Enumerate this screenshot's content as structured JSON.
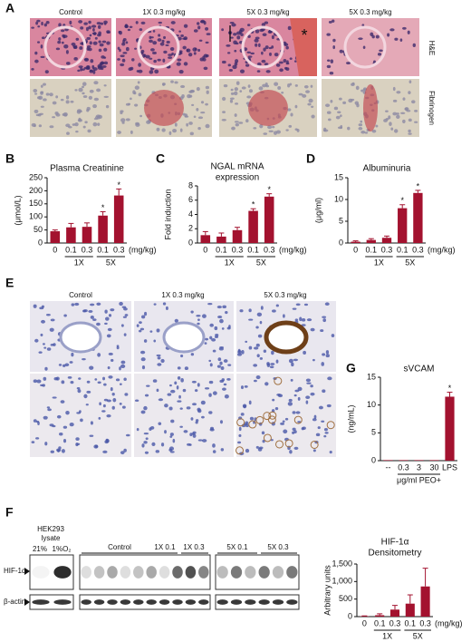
{
  "panel_a": {
    "label": "A",
    "columns": [
      "Control",
      "1X 0.3 mg/kg",
      "5X 0.3 mg/kg",
      "5X 0.3 mg/kg"
    ],
    "rows": [
      "H&E",
      "Fibrinogen"
    ],
    "annotation": "*"
  },
  "panel_e": {
    "label": "E",
    "columns": [
      "Control",
      "1X 0.3 mg/kg",
      "5X 0.3 mg/kg"
    ]
  },
  "panel_f": {
    "label": "F",
    "lysate": [
      "HEK293",
      "lysate"
    ],
    "oxygen": [
      "21%",
      "1%O₂"
    ],
    "lanes": [
      "Control",
      "1X 0.1",
      "1X 0.3",
      "5X 0.1",
      "5X 0.3"
    ],
    "rows": [
      "HIF-1α",
      "β-actin"
    ]
  },
  "chart_data": [
    {
      "type": "bar",
      "label": "B",
      "title": "Plasma Creatinine",
      "y_label": "(μmol/L)",
      "categories": [
        "0",
        "0.1",
        "0.3",
        "0.1",
        "0.3"
      ],
      "unit_label": "(mg/kg)",
      "group_labels": [
        null,
        "1X",
        "1X",
        "5X",
        "5X"
      ],
      "values": [
        45,
        60,
        62,
        105,
        182
      ],
      "errors": [
        5,
        15,
        15,
        15,
        25
      ],
      "markers": [
        null,
        null,
        null,
        "*",
        "*"
      ],
      "color": "#a3122f",
      "ylim": [
        0,
        250
      ],
      "yticks": [
        0,
        50,
        100,
        150,
        200,
        250
      ]
    },
    {
      "type": "bar",
      "label": "C",
      "title": [
        "NGAL mRNA",
        "expression"
      ],
      "y_label": "Fold induction",
      "categories": [
        "0",
        "0.1",
        "0.3",
        "0.1",
        "0.3"
      ],
      "unit_label": "(mg/kg)",
      "group_labels": [
        null,
        "1X",
        "1X",
        "5X",
        "5X"
      ],
      "values": [
        1.1,
        0.9,
        1.8,
        4.5,
        6.5
      ],
      "errors": [
        0.5,
        0.5,
        0.4,
        0.3,
        0.4
      ],
      "markers": [
        null,
        null,
        null,
        "*",
        "*"
      ],
      "color": "#a3122f",
      "ylim": [
        0,
        8
      ],
      "yticks": [
        0,
        2,
        4,
        6,
        8
      ]
    },
    {
      "type": "bar",
      "label": "D",
      "title": "Albuminuria",
      "y_label": "(μg/ml)",
      "categories": [
        "0",
        "0.1",
        "0.3",
        "0.1",
        "0.3"
      ],
      "unit_label": "(mg/kg)",
      "group_labels": [
        null,
        "1X",
        "1X",
        "5X",
        "5X"
      ],
      "values": [
        0.3,
        0.7,
        1.2,
        8.0,
        11.5
      ],
      "errors": [
        0.2,
        0.3,
        0.4,
        0.8,
        0.6
      ],
      "markers": [
        null,
        null,
        null,
        "*",
        "*"
      ],
      "color": "#a3122f",
      "ylim": [
        0,
        15
      ],
      "yticks": [
        0,
        5,
        10,
        15
      ]
    },
    {
      "type": "bar",
      "label": "G",
      "title": "sVCAM",
      "y_label": "(ng/mL)",
      "categories": [
        "--",
        "0.3",
        "3",
        "30",
        "LPS"
      ],
      "group_labels": [
        null,
        "μg/ml PEO+",
        "μg/ml PEO+",
        "μg/ml PEO+",
        null
      ],
      "values": [
        0.1,
        0.1,
        0.1,
        0.1,
        11.5
      ],
      "errors": [
        0,
        0,
        0,
        0,
        0.8
      ],
      "markers": [
        null,
        null,
        null,
        null,
        "*"
      ],
      "color": "#a3122f",
      "ylim": [
        0,
        15
      ],
      "yticks": [
        0,
        5,
        10,
        15
      ]
    },
    {
      "type": "bar",
      "title": [
        "HIF-1α",
        "Densitometry"
      ],
      "y_label": "Arbitrary units",
      "categories": [
        "0",
        "0.1",
        "0.3",
        "0.1",
        "0.3"
      ],
      "unit_label": "(mg/kg)",
      "group_labels": [
        null,
        "1X",
        "1X",
        "5X",
        "5X"
      ],
      "values": [
        10,
        40,
        200,
        370,
        860
      ],
      "errors": [
        10,
        40,
        120,
        250,
        520
      ],
      "color": "#a3122f",
      "ylim": [
        0,
        1500
      ],
      "yticks": [
        0,
        500,
        {
          "value": 1000,
          "label": "1,000"
        },
        {
          "value": 1500,
          "label": "1,500"
        }
      ]
    }
  ]
}
